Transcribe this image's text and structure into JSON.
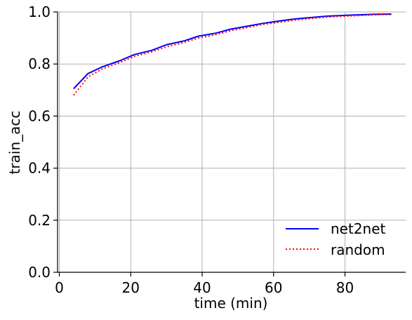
{
  "chart_data": {
    "type": "line",
    "title": "",
    "xlabel": "time (min)",
    "ylabel": "train_acc",
    "xlim": [
      -0.5,
      97
    ],
    "ylim": [
      0.0,
      1.0
    ],
    "xticks": [
      0,
      20,
      40,
      60,
      80
    ],
    "yticks": [
      0.0,
      0.2,
      0.4,
      0.6,
      0.8,
      1.0
    ],
    "xtick_labels": [
      "0",
      "20",
      "40",
      "60",
      "80"
    ],
    "ytick_labels": [
      "0.0",
      "0.2",
      "0.4",
      "0.6",
      "0.8",
      "1.0"
    ],
    "grid": true,
    "legend_position": "bottom-right",
    "series": [
      {
        "name": "net2net",
        "color": "#0000ff",
        "style": "solid",
        "x": [
          4,
          8,
          12,
          17,
          21,
          26,
          30,
          35,
          39,
          44,
          48,
          53,
          57,
          62,
          66,
          71,
          75,
          80,
          84,
          88,
          93
        ],
        "y": [
          0.705,
          0.763,
          0.789,
          0.813,
          0.836,
          0.853,
          0.874,
          0.889,
          0.907,
          0.919,
          0.934,
          0.946,
          0.956,
          0.966,
          0.973,
          0.979,
          0.984,
          0.987,
          0.989,
          0.991,
          0.992
        ]
      },
      {
        "name": "random",
        "color": "#ff0000",
        "style": "dotted",
        "x": [
          4,
          8,
          12,
          17,
          21,
          26,
          30,
          35,
          39,
          44,
          48,
          53,
          57,
          62,
          66,
          71,
          75,
          80,
          84,
          88,
          93
        ],
        "y": [
          0.68,
          0.75,
          0.781,
          0.806,
          0.829,
          0.847,
          0.866,
          0.883,
          0.9,
          0.913,
          0.928,
          0.941,
          0.952,
          0.961,
          0.969,
          0.975,
          0.98,
          0.984,
          0.986,
          0.989,
          0.99
        ]
      }
    ]
  }
}
